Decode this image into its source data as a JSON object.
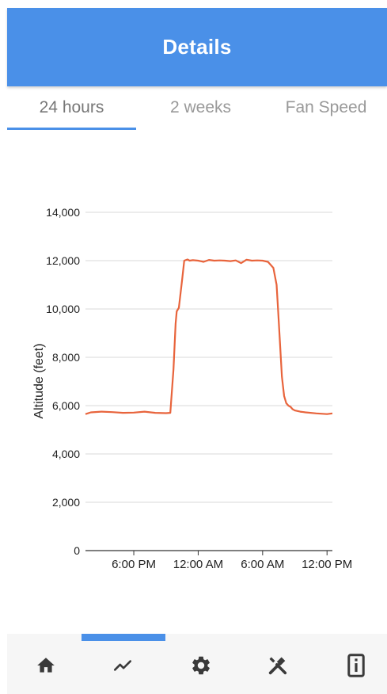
{
  "app_bar": {
    "title": "Details"
  },
  "tabs": [
    {
      "label": "24 hours",
      "active": true
    },
    {
      "label": "2 weeks",
      "active": false
    },
    {
      "label": "Fan Speed",
      "active": false
    }
  ],
  "colors": {
    "primary": "#4a90e8",
    "series": "#e8643c"
  },
  "chart_data": {
    "type": "line",
    "title": "",
    "xlabel": "",
    "ylabel": "Altitude (feet)",
    "ylim": [
      0,
      14000
    ],
    "yticks": [
      0,
      2000,
      4000,
      6000,
      8000,
      10000,
      12000,
      14000
    ],
    "ytick_labels": [
      "0",
      "2,000",
      "4,000",
      "6,000",
      "8,000",
      "10,000",
      "12,000",
      "14,000"
    ],
    "xlim": [
      "1:30 PM",
      "12:30 PM (+1 day)"
    ],
    "x_units": "hours",
    "xticks": [
      18,
      24,
      30,
      36
    ],
    "xtick_labels": [
      "6:00 PM",
      "12:00 AM",
      "6:00 AM",
      "12:00 PM"
    ],
    "grid": "horizontal",
    "series": [
      {
        "x": [
          13.5,
          14.0,
          15.0,
          16.0,
          17.0,
          18.0,
          19.0,
          20.0,
          21.0,
          21.4,
          21.7,
          21.9,
          22.0,
          22.2,
          22.5,
          22.7,
          23.0,
          23.2,
          23.5,
          24.0,
          24.5,
          25.0,
          25.5,
          26.0,
          26.5,
          27.0,
          27.5,
          28.0,
          28.5,
          29.0,
          29.5,
          30.0,
          30.5,
          31.0,
          31.3,
          31.5,
          31.8,
          32.0,
          32.2,
          32.4,
          32.6,
          32.8,
          33.0,
          33.5,
          34.0,
          35.0,
          36.0,
          36.5
        ],
        "y": [
          5650,
          5720,
          5750,
          5730,
          5700,
          5710,
          5750,
          5700,
          5690,
          5700,
          7500,
          9400,
          9900,
          10050,
          11200,
          12000,
          12050,
          12000,
          12020,
          12000,
          11950,
          12030,
          12000,
          12010,
          12000,
          11980,
          12010,
          11900,
          12040,
          12000,
          12010,
          12000,
          11950,
          11700,
          11000,
          9500,
          7200,
          6400,
          6100,
          6000,
          5950,
          5850,
          5800,
          5750,
          5720,
          5680,
          5650,
          5680
        ]
      }
    ]
  },
  "bottom_nav": {
    "items": [
      {
        "icon": "home-icon",
        "active": false
      },
      {
        "icon": "chart-icon",
        "active": true
      },
      {
        "icon": "gear-icon",
        "active": false
      },
      {
        "icon": "tools-icon",
        "active": false
      },
      {
        "icon": "info-icon",
        "active": false
      }
    ]
  }
}
